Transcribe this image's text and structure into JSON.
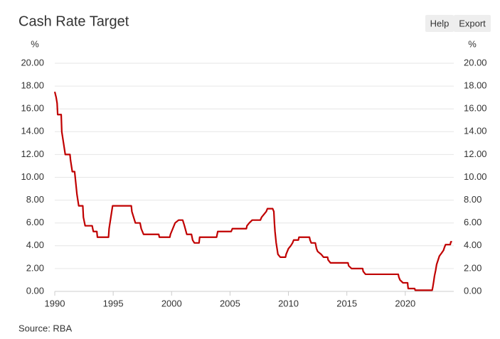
{
  "buttons": [
    "Help",
    "Export"
  ],
  "chart_data": {
    "type": "line",
    "title": "Cash Rate Target",
    "ylabel": "%",
    "source": "Source: RBA",
    "color": "#c00000",
    "grid": true,
    "xlim": [
      1990,
      2024.15
    ],
    "ylim": [
      0,
      20
    ],
    "xticks": [
      1990,
      1995,
      2000,
      2005,
      2010,
      2015,
      2020
    ],
    "yticks": [
      {
        "value": 0,
        "label": "0.00"
      },
      {
        "value": 2,
        "label": "2.00"
      },
      {
        "value": 4,
        "label": "4.00"
      },
      {
        "value": 6,
        "label": "6.00"
      },
      {
        "value": 8,
        "label": "8.00"
      },
      {
        "value": 10,
        "label": "10.00"
      },
      {
        "value": 12,
        "label": "12.00"
      },
      {
        "value": 14,
        "label": "14.00"
      },
      {
        "value": 16,
        "label": "16.00"
      },
      {
        "value": 18,
        "label": "18.00"
      },
      {
        "value": 20,
        "label": "20.00"
      }
    ],
    "x": [
      1990.0,
      1990.12,
      1990.2,
      1990.25,
      1990.55,
      1990.6,
      1990.75,
      1990.9,
      1991.3,
      1991.35,
      1991.5,
      1991.7,
      1991.8,
      1991.9,
      1992.05,
      1992.4,
      1992.45,
      1992.6,
      1993.2,
      1993.3,
      1993.6,
      1993.65,
      1994.6,
      1994.65,
      1994.8,
      1994.95,
      1996.55,
      1996.6,
      1996.9,
      1997.3,
      1997.4,
      1997.6,
      1998.9,
      1998.95,
      1999.85,
      1999.9,
      2000.1,
      2000.3,
      2000.6,
      2000.95,
      2001.1,
      2001.3,
      2001.7,
      2001.8,
      2001.95,
      2002.35,
      2002.4,
      2003.85,
      2003.95,
      2005.1,
      2005.2,
      2006.4,
      2006.45,
      2006.65,
      2006.9,
      2007.6,
      2007.7,
      2007.9,
      2008.1,
      2008.2,
      2008.65,
      2008.75,
      2008.8,
      2008.85,
      2008.95,
      2009.1,
      2009.3,
      2009.75,
      2009.8,
      2009.9,
      2010.0,
      2010.2,
      2010.35,
      2010.45,
      2010.85,
      2010.9,
      2011.8,
      2011.85,
      2011.95,
      2012.3,
      2012.4,
      2012.5,
      2012.8,
      2013.0,
      2013.35,
      2013.4,
      2013.6,
      2015.1,
      2015.15,
      2015.4,
      2016.35,
      2016.4,
      2016.6,
      2019.4,
      2019.45,
      2019.55,
      2019.8,
      2020.2,
      2020.22,
      2020.25,
      2020.8,
      2020.85,
      2022.3,
      2022.35,
      2022.43,
      2022.5,
      2022.6,
      2022.68,
      2022.76,
      2022.84,
      2022.92,
      2023.1,
      2023.27,
      2023.35,
      2023.45,
      2023.85,
      2023.9,
      2024.0
    ],
    "values": [
      17.5,
      17.0,
      16.5,
      15.5,
      15.5,
      14.0,
      13.0,
      12.0,
      12.0,
      11.5,
      10.5,
      10.5,
      9.5,
      8.5,
      7.5,
      7.5,
      6.5,
      5.75,
      5.75,
      5.25,
      5.25,
      4.75,
      4.75,
      5.5,
      6.5,
      7.5,
      7.5,
      7.0,
      6.0,
      6.0,
      5.5,
      5.0,
      5.0,
      4.75,
      4.75,
      5.0,
      5.5,
      6.0,
      6.25,
      6.25,
      5.75,
      5.0,
      5.0,
      4.5,
      4.25,
      4.25,
      4.75,
      4.75,
      5.25,
      5.25,
      5.5,
      5.5,
      5.75,
      6.0,
      6.25,
      6.25,
      6.5,
      6.75,
      7.0,
      7.25,
      7.25,
      7.0,
      6.0,
      5.25,
      4.25,
      3.25,
      3.0,
      3.0,
      3.25,
      3.5,
      3.75,
      4.0,
      4.25,
      4.5,
      4.5,
      4.75,
      4.75,
      4.5,
      4.25,
      4.25,
      3.75,
      3.5,
      3.25,
      3.0,
      3.0,
      2.75,
      2.5,
      2.5,
      2.25,
      2.0,
      2.0,
      1.75,
      1.5,
      1.5,
      1.25,
      1.0,
      0.75,
      0.75,
      0.5,
      0.25,
      0.25,
      0.1,
      0.1,
      0.35,
      0.85,
      1.35,
      1.85,
      2.35,
      2.6,
      2.85,
      3.1,
      3.35,
      3.6,
      3.85,
      4.1,
      4.1,
      4.35,
      4.35
    ]
  }
}
